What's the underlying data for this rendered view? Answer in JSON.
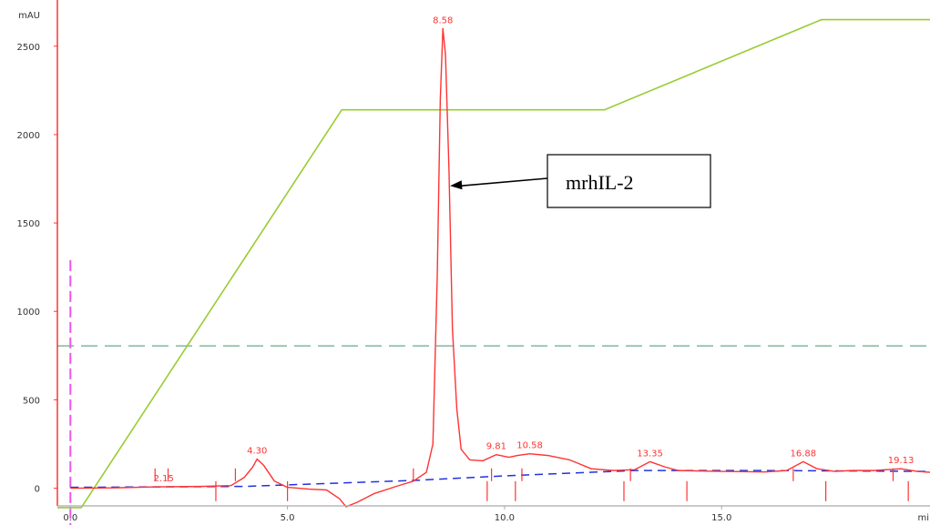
{
  "chart_data": {
    "type": "line",
    "title": "",
    "ylabel": "mAU",
    "xlabel": "mi",
    "xlim": [
      -0.3,
      19.8
    ],
    "ylim": [
      -100,
      2720
    ],
    "x_ticks": [
      0.0,
      5.0,
      10.0,
      15.0
    ],
    "x_tick_labels": [
      "0.0",
      "5.0",
      "10.0",
      "15.0"
    ],
    "y_ticks": [
      0,
      500,
      1000,
      1500,
      2000,
      2500
    ],
    "y_tick_labels": [
      "0",
      "500",
      "1000",
      "1500",
      "2000",
      "2500"
    ],
    "grid": false,
    "colors": {
      "signal": "#ff3333",
      "gradient": "#99cc33",
      "baseline": "#2233dd",
      "threshold": "#66aa88",
      "injection": "#ee55ee"
    },
    "series": [
      {
        "role": "absorbance",
        "x": [
          0.0,
          1.0,
          2.0,
          3.0,
          3.7,
          4.0,
          4.2,
          4.3,
          4.45,
          4.7,
          5.0,
          5.5,
          5.9,
          6.2,
          6.35,
          6.6,
          7.0,
          7.5,
          7.9,
          8.2,
          8.35,
          8.45,
          8.52,
          8.58,
          8.64,
          8.72,
          8.8,
          8.9,
          9.0,
          9.2,
          9.5,
          9.81,
          10.1,
          10.3,
          10.58,
          11.0,
          11.5,
          12.0,
          12.5,
          13.0,
          13.35,
          13.7,
          14.0,
          15.0,
          16.0,
          16.5,
          16.88,
          17.2,
          17.6,
          18.0,
          18.5,
          19.13,
          19.5,
          19.8
        ],
        "y": [
          0,
          2,
          8,
          10,
          15,
          60,
          120,
          165,
          130,
          40,
          5,
          -5,
          -10,
          -60,
          -105,
          -80,
          -30,
          10,
          40,
          90,
          250,
          1200,
          2200,
          2600,
          2450,
          1800,
          900,
          450,
          220,
          160,
          155,
          190,
          175,
          185,
          195,
          185,
          160,
          110,
          100,
          105,
          150,
          120,
          100,
          95,
          92,
          100,
          150,
          110,
          95,
          100,
          100,
          110,
          95,
          90
        ]
      },
      {
        "role": "gradient",
        "x": [
          -0.3,
          0.25,
          6.25,
          12.3,
          17.3,
          19.8
        ],
        "y": [
          -110,
          -110,
          2140,
          2140,
          2650,
          2650
        ]
      },
      {
        "role": "baseline",
        "x": [
          0.0,
          4.0,
          8.0,
          10.0,
          13.0,
          16.0,
          19.8
        ],
        "y": [
          5,
          10,
          45,
          70,
          100,
          100,
          95
        ]
      },
      {
        "role": "threshold",
        "x": [
          -0.3,
          19.8
        ],
        "y": [
          805,
          805
        ]
      }
    ],
    "injection_x": 0.0,
    "injection_top": 1290,
    "peak_labels": [
      {
        "text": "2.15",
        "x": 2.15,
        "y": 8
      },
      {
        "text": "4.30",
        "x": 4.3,
        "y": 165
      },
      {
        "text": "8.58",
        "x": 8.58,
        "y": 2600
      },
      {
        "text": "9.81",
        "x": 9.81,
        "y": 190
      },
      {
        "text": "10.58",
        "x": 10.58,
        "y": 195
      },
      {
        "text": "13.35",
        "x": 13.35,
        "y": 150
      },
      {
        "text": "16.88",
        "x": 16.88,
        "y": 150
      },
      {
        "text": "19.13",
        "x": 19.13,
        "y": 110
      }
    ],
    "integration_marks": [
      {
        "x": 1.95,
        "dir": "up"
      },
      {
        "x": 2.25,
        "dir": "up"
      },
      {
        "x": 3.35,
        "dir": "down"
      },
      {
        "x": 3.8,
        "dir": "up"
      },
      {
        "x": 5.0,
        "dir": "down"
      },
      {
        "x": 7.9,
        "dir": "up"
      },
      {
        "x": 9.6,
        "dir": "down"
      },
      {
        "x": 9.7,
        "dir": "up"
      },
      {
        "x": 10.25,
        "dir": "down"
      },
      {
        "x": 10.4,
        "dir": "up"
      },
      {
        "x": 12.75,
        "dir": "down"
      },
      {
        "x": 12.9,
        "dir": "up"
      },
      {
        "x": 14.2,
        "dir": "down"
      },
      {
        "x": 16.65,
        "dir": "up"
      },
      {
        "x": 17.4,
        "dir": "down"
      },
      {
        "x": 18.95,
        "dir": "up"
      },
      {
        "x": 19.3,
        "dir": "down"
      }
    ],
    "annotation": {
      "text": "mrhIL-2",
      "target_x": 8.62,
      "target_y": 1710
    }
  }
}
